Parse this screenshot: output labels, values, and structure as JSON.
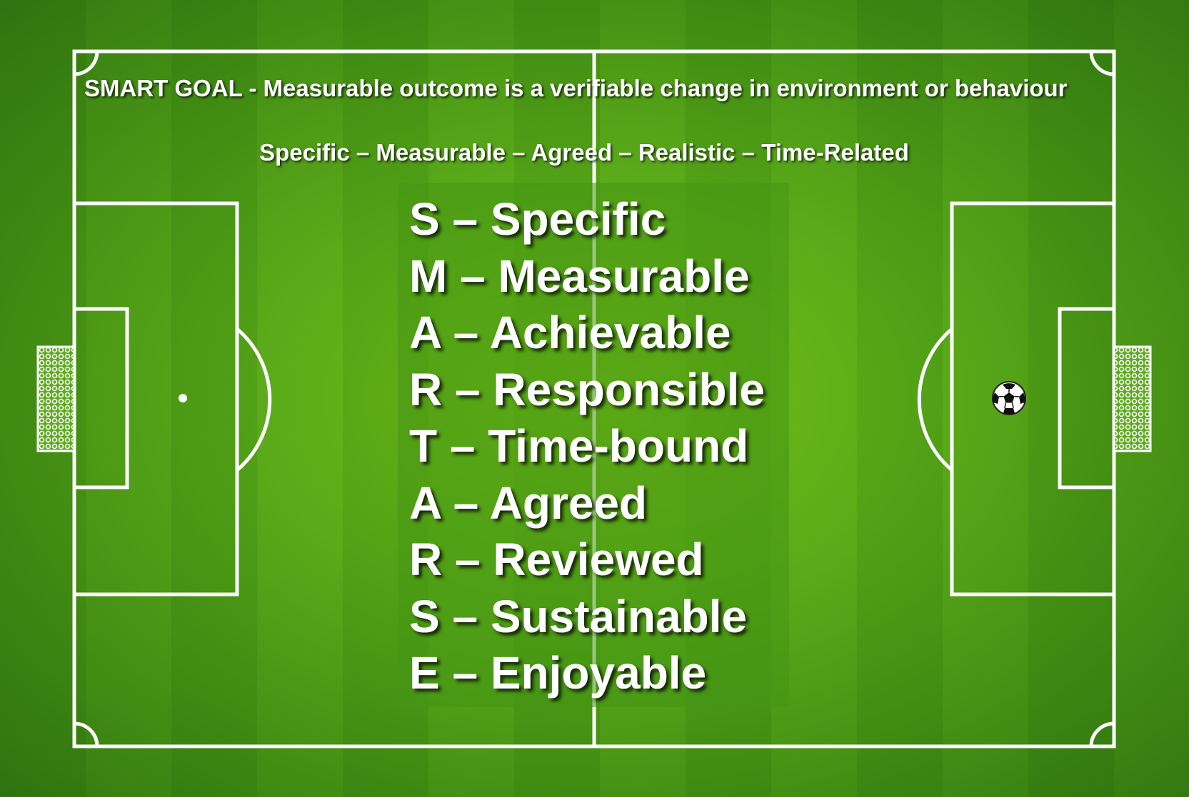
{
  "heading": "SMART GOAL - Measurable outcome is a verifiable change in environment or behaviour",
  "subheading": "Specific – Measurable – Agreed – Realistic – Time-Related",
  "acronym": [
    "S – Specific",
    "M – Measurable",
    "A – Achievable",
    "R – Responsible",
    "T – Time-bound",
    "A – Agreed",
    "R – Reviewed",
    "S – Sustainable",
    "E – Enjoyable"
  ],
  "colors": {
    "pitch_green": "#52a318",
    "line_white": "#ffffff",
    "text_white": "#ffffff"
  },
  "icons": {
    "ball": "soccer-ball-icon",
    "goal_left": "goal-net-icon",
    "goal_right": "goal-net-icon"
  }
}
